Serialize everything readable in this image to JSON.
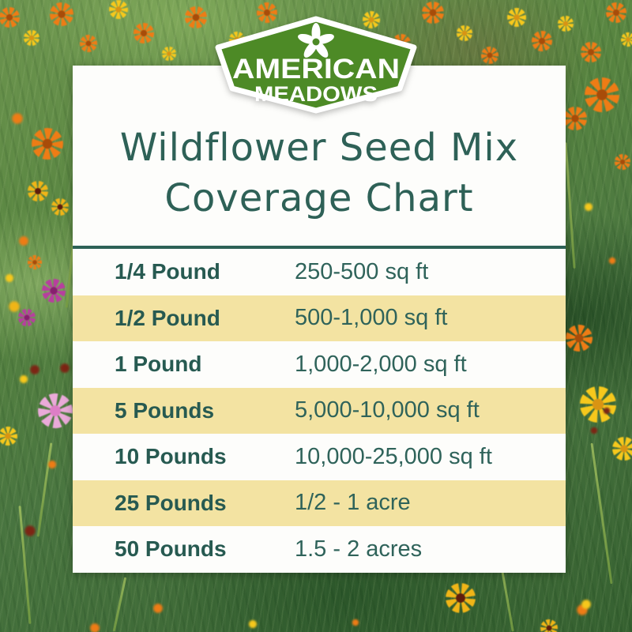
{
  "logo": {
    "alt": "American Meadows",
    "line1": "AMERICAN",
    "line2": "MEADOWS"
  },
  "title": {
    "line1": "Wildflower Seed Mix",
    "line2": "Coverage Chart"
  },
  "table": {
    "rows": [
      {
        "amount": "1/4 Pound",
        "coverage": "250-500 sq ft"
      },
      {
        "amount": "1/2 Pound",
        "coverage": "500-1,000 sq ft"
      },
      {
        "amount": "1 Pound",
        "coverage": "1,000-2,000 sq ft"
      },
      {
        "amount": "5 Pounds",
        "coverage": "5,000-10,000 sq ft"
      },
      {
        "amount": "10 Pounds",
        "coverage": "10,000-25,000 sq ft"
      },
      {
        "amount": "25 Pounds",
        "coverage": "1/2 - 1 acre"
      },
      {
        "amount": "50 Pounds",
        "coverage": "1.5 - 2 acres"
      }
    ]
  },
  "chart_data": {
    "type": "table",
    "title": "Wildflower Seed Mix Coverage Chart",
    "rows": [
      [
        "1/4 Pound",
        "250-500 sq ft"
      ],
      [
        "1/2 Pound",
        "500-1,000 sq ft"
      ],
      [
        "1 Pound",
        "1,000-2,000 sq ft"
      ],
      [
        "5 Pounds",
        "5,000-10,000 sq ft"
      ],
      [
        "10 Pounds",
        "10,000-25,000 sq ft"
      ],
      [
        "25 Pounds",
        "1/2 - 1 acre"
      ],
      [
        "50 Pounds",
        "1.5 - 2 acres"
      ]
    ]
  },
  "colors": {
    "teal_text": "#2d6157",
    "row_stripe_yellow": "#f3e3a2",
    "badge_green": "#4d8a26",
    "card_white": "#fdfdfb"
  }
}
